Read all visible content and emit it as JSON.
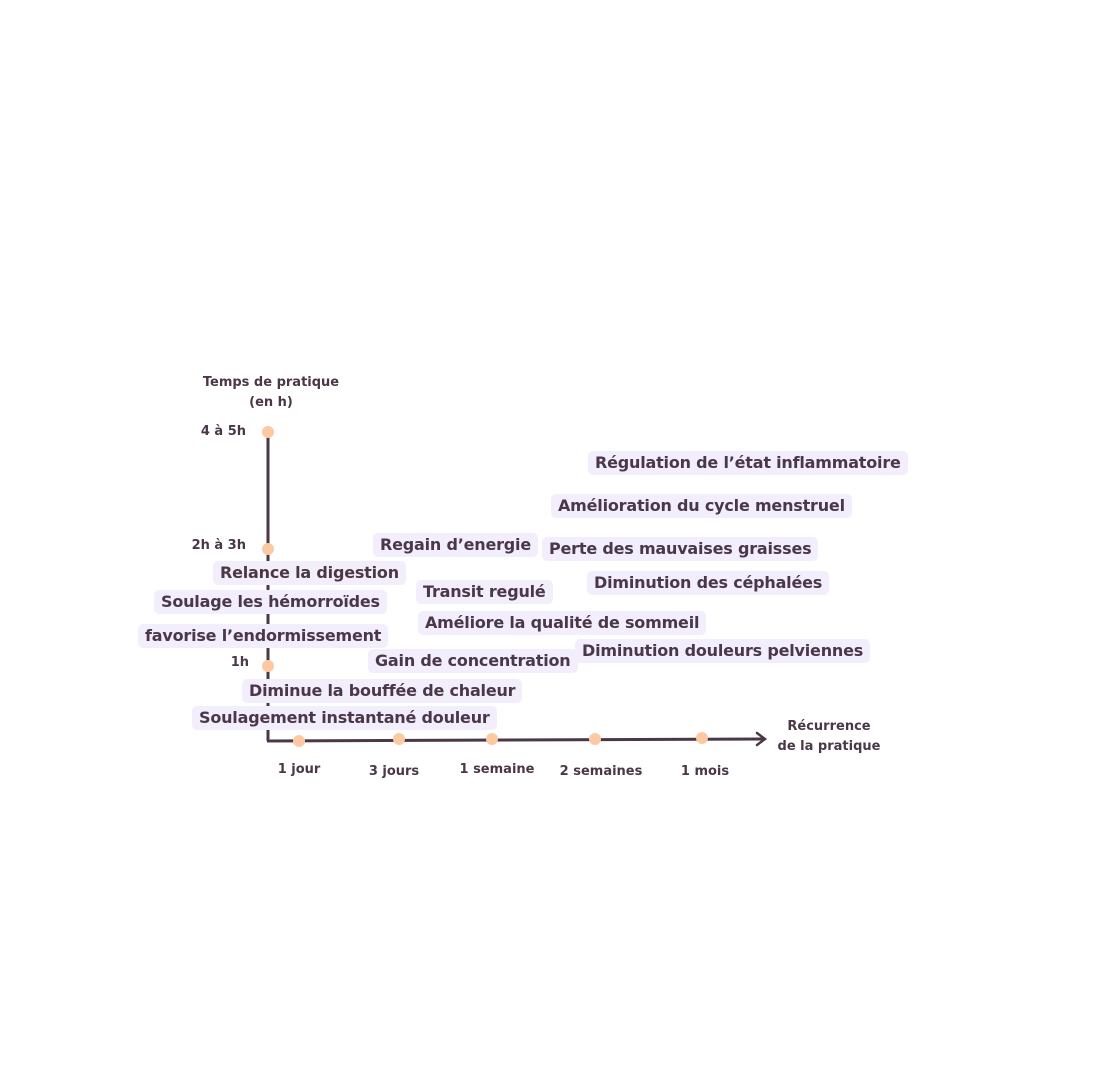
{
  "y_axis": {
    "title": "Temps de pratique\n(en h)",
    "title_line1": "Temps de pratique",
    "title_line2": "(en h)",
    "ticks": [
      "4 à 5h",
      "2h à 3h",
      "1h"
    ]
  },
  "x_axis": {
    "title_line1": "Récurrence",
    "title_line2": "de la pratique",
    "ticks": [
      "1 jour",
      "3 jours",
      "1 semaine",
      "2 semaines",
      "1 mois"
    ]
  },
  "benefits": [
    "Régulation de l’état inflammatoire",
    "Amélioration du cycle menstruel",
    "Perte des mauvaises graisses",
    "Regain d’energie",
    "Relance la digestion",
    "Transit regulé",
    "Diminution des céphalées",
    "Soulage les hémorroïdes",
    "Améliore la qualité de sommeil",
    "favorise l’endormissement",
    "Gain de concentration",
    "Diminution douleurs pelviennes",
    "Diminue la bouffée de chaleur",
    "Soulagement instantané douleur"
  ],
  "colors": {
    "axis": "#4a3848",
    "dot": "#fcc9a3",
    "box": "#f3eefb",
    "text": "#4a3848"
  }
}
